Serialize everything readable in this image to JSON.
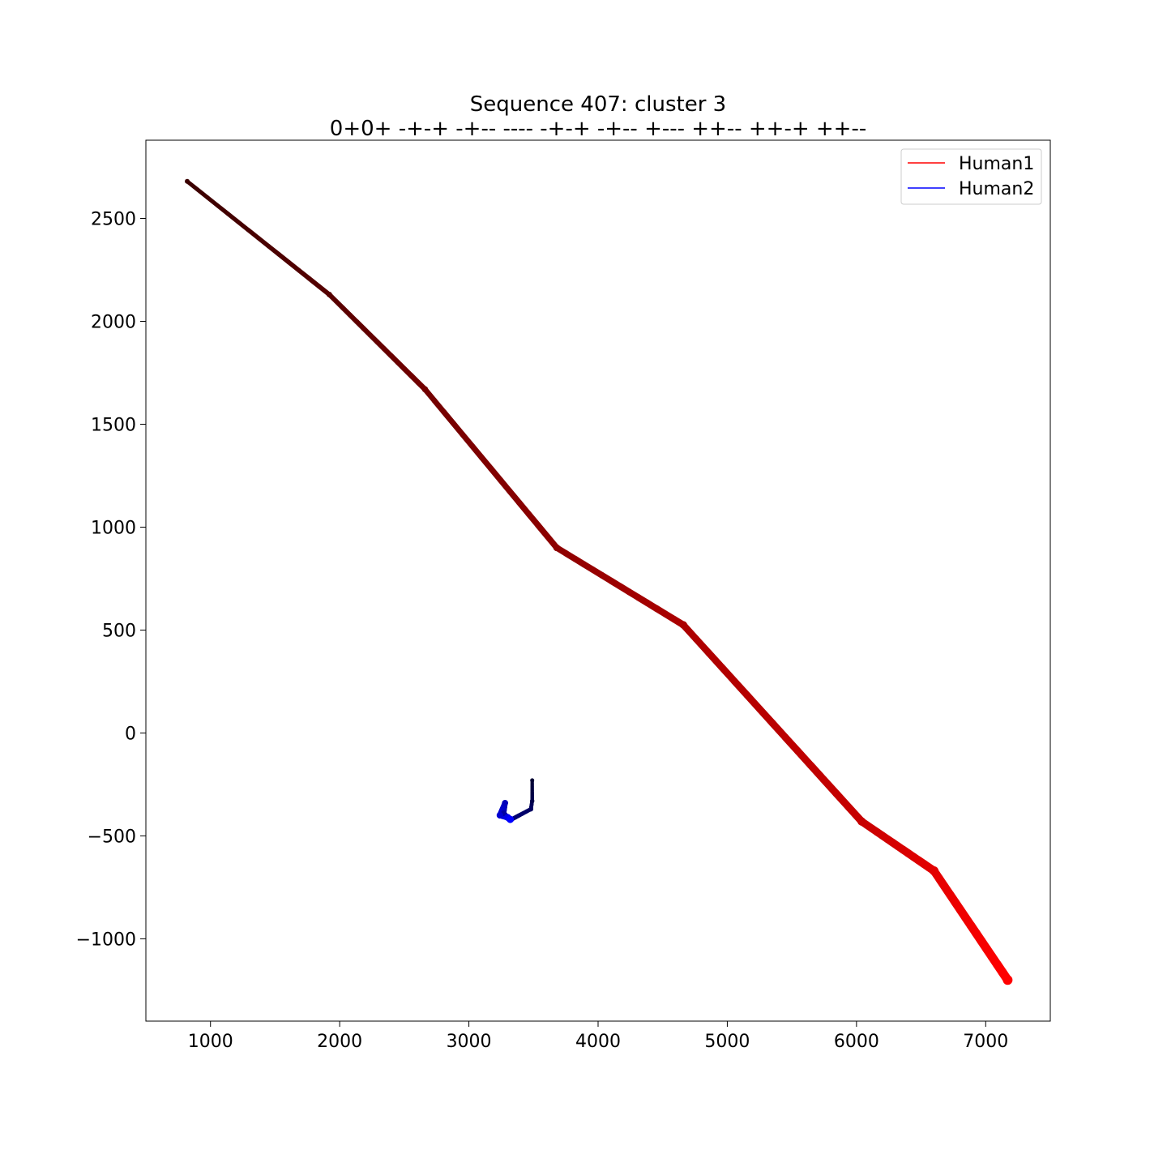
{
  "chart_data": {
    "type": "line",
    "title": "Sequence 407: cluster 3",
    "subtitle": "0+0+ -+-+ -+-- ---- -+-+ -+-- +--- ++-- ++-+ ++--",
    "xlabel": "",
    "ylabel": "",
    "xlim": [
      500,
      7500
    ],
    "ylim": [
      -1400,
      2880
    ],
    "xticks": [
      1000,
      2000,
      3000,
      4000,
      5000,
      6000,
      7000
    ],
    "xtick_labels": [
      "1000",
      "2000",
      "3000",
      "4000",
      "5000",
      "6000",
      "7000"
    ],
    "yticks": [
      2500,
      2000,
      1500,
      1000,
      500,
      0,
      -500,
      -1000
    ],
    "ytick_labels": [
      "2500",
      "2000",
      "1500",
      "1000",
      "500",
      "0",
      "−500",
      "−1000"
    ],
    "grid": false,
    "legend": {
      "position": "top-right",
      "entries": [
        "Human1",
        "Human2"
      ]
    },
    "series": [
      {
        "name": "Human1",
        "color": "#ff0000",
        "start_color": "#3a0000",
        "x": [
          820,
          1920,
          2660,
          3680,
          4660,
          6040,
          6600,
          7170
        ],
        "y": [
          2680,
          2130,
          1670,
          900,
          525,
          -430,
          -670,
          -1200
        ]
      },
      {
        "name": "Human2",
        "color": "#0000ff",
        "start_color": "#000033",
        "x": [
          3490,
          3490,
          3480,
          3330,
          3300,
          3270,
          3280,
          3240,
          3300,
          3320
        ],
        "y": [
          -230,
          -330,
          -370,
          -420,
          -410,
          -390,
          -340,
          -400,
          -410,
          -420
        ]
      }
    ]
  }
}
